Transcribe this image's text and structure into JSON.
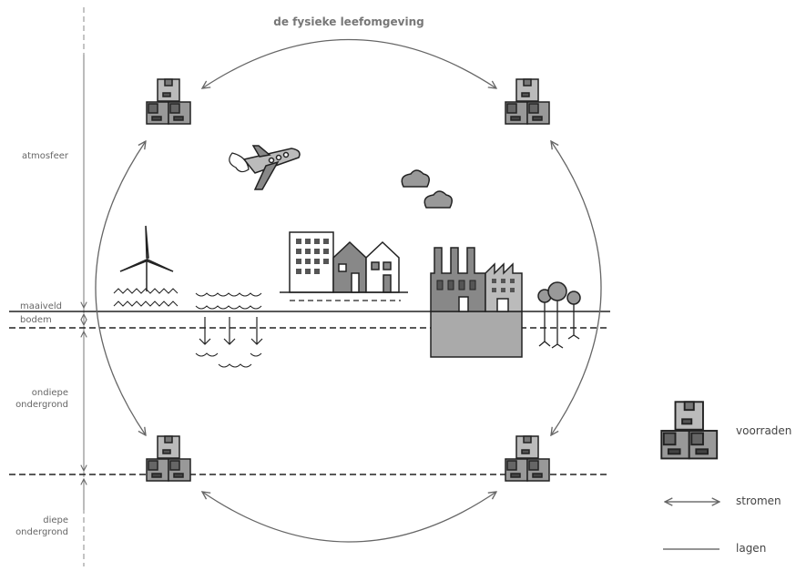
{
  "title": "de fysieke leefomgeving",
  "layers": [
    "atmosfeer",
    "maaiveld",
    "bodem",
    "ondiepe ondergrond",
    "diepe ondergrond"
  ],
  "legend": [
    "voorraden",
    "stromen",
    "lagen"
  ]
}
